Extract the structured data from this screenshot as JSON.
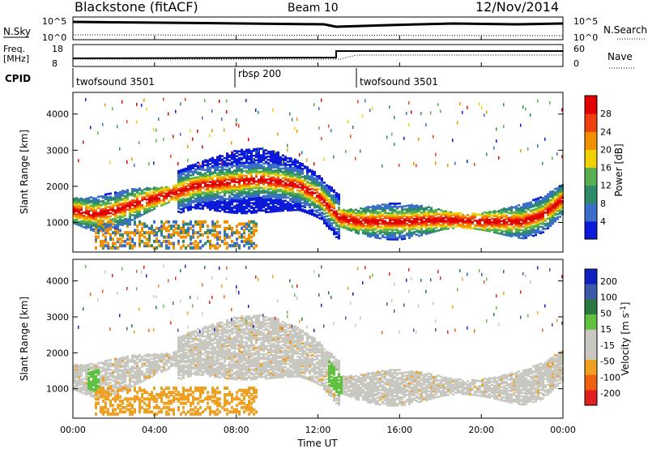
{
  "header": {
    "radar": "Blackstone (fitACF)",
    "beam": "Beam 10",
    "date": "12/Nov/2014"
  },
  "nsky_panel": {
    "left_label": "N.Sky",
    "right_label": "N.Search",
    "left_ticks": [
      "10^5",
      "10^0"
    ],
    "right_ticks": [
      "10^5",
      "10^0"
    ]
  },
  "freq_panel": {
    "left_label_line1": "Freq.",
    "left_label_line2": "[MHz]",
    "right_label": "Nave",
    "left_ticks": [
      "18",
      "8"
    ],
    "right_ticks": [
      "60",
      "0"
    ]
  },
  "cpid": {
    "label": "CPID",
    "segments": [
      {
        "name": "twofsound 3501",
        "start": 0,
        "end": 7.8
      },
      {
        "name": "rbsp 200",
        "start": 7.8,
        "end": 14.0
      },
      {
        "name": "twofsound 3501",
        "start": 14.0,
        "end": 24.0
      }
    ]
  },
  "x_axis": {
    "title": "Time UT",
    "ticks": [
      "00:00",
      "04:00",
      "08:00",
      "12:00",
      "16:00",
      "20:00",
      "00:00"
    ],
    "tick_hours": [
      0,
      4,
      8,
      12,
      16,
      20,
      24
    ]
  },
  "colors": {
    "power": [
      "#0a1ad8",
      "#3a6ec8",
      "#2f8a68",
      "#58b050",
      "#f0d000",
      "#f09000",
      "#f04010",
      "#e00000"
    ],
    "velocity": [
      "#1020c0",
      "#3a5aa8",
      "#2a7a40",
      "#60c040",
      "#c8c8c0",
      "#c8c8c0",
      "#f0a020",
      "#f06010",
      "#e02020"
    ]
  },
  "chart_data": [
    {
      "type": "heatmap",
      "name": "power",
      "xlabel": "Time UT",
      "ylabel": "Slant Range [km]",
      "xlim": [
        0,
        24
      ],
      "ylim": [
        180,
        4600
      ],
      "yticks": [
        1000,
        2000,
        3000,
        4000
      ],
      "colorbar": {
        "label": "Power [dB]",
        "ticks": [
          4,
          8,
          12,
          16,
          20,
          24,
          28
        ],
        "range": [
          0,
          32
        ]
      },
      "main_band_km": {
        "hours": [
          0,
          1,
          2,
          3,
          4,
          5,
          6,
          7,
          8,
          9,
          10,
          11,
          12,
          13,
          14,
          16,
          18,
          20,
          22,
          23,
          24
        ],
        "center": [
          1300,
          1200,
          1300,
          1500,
          1650,
          1800,
          2000,
          2050,
          2100,
          2150,
          2100,
          2000,
          1700,
          1100,
          1000,
          1000,
          1050,
          1000,
          1000,
          1200,
          1650
        ]
      }
    },
    {
      "type": "heatmap",
      "name": "velocity",
      "xlabel": "Time UT",
      "ylabel": "Slant Range [km]",
      "xlim": [
        0,
        24
      ],
      "ylim": [
        180,
        4600
      ],
      "yticks": [
        1000,
        2000,
        3000,
        4000
      ],
      "colorbar": {
        "label": "Velocity [m s^-1]",
        "ticks": [
          "200",
          "100",
          "50",
          "15",
          "-15",
          "-50",
          "-100",
          "-200"
        ]
      }
    }
  ]
}
